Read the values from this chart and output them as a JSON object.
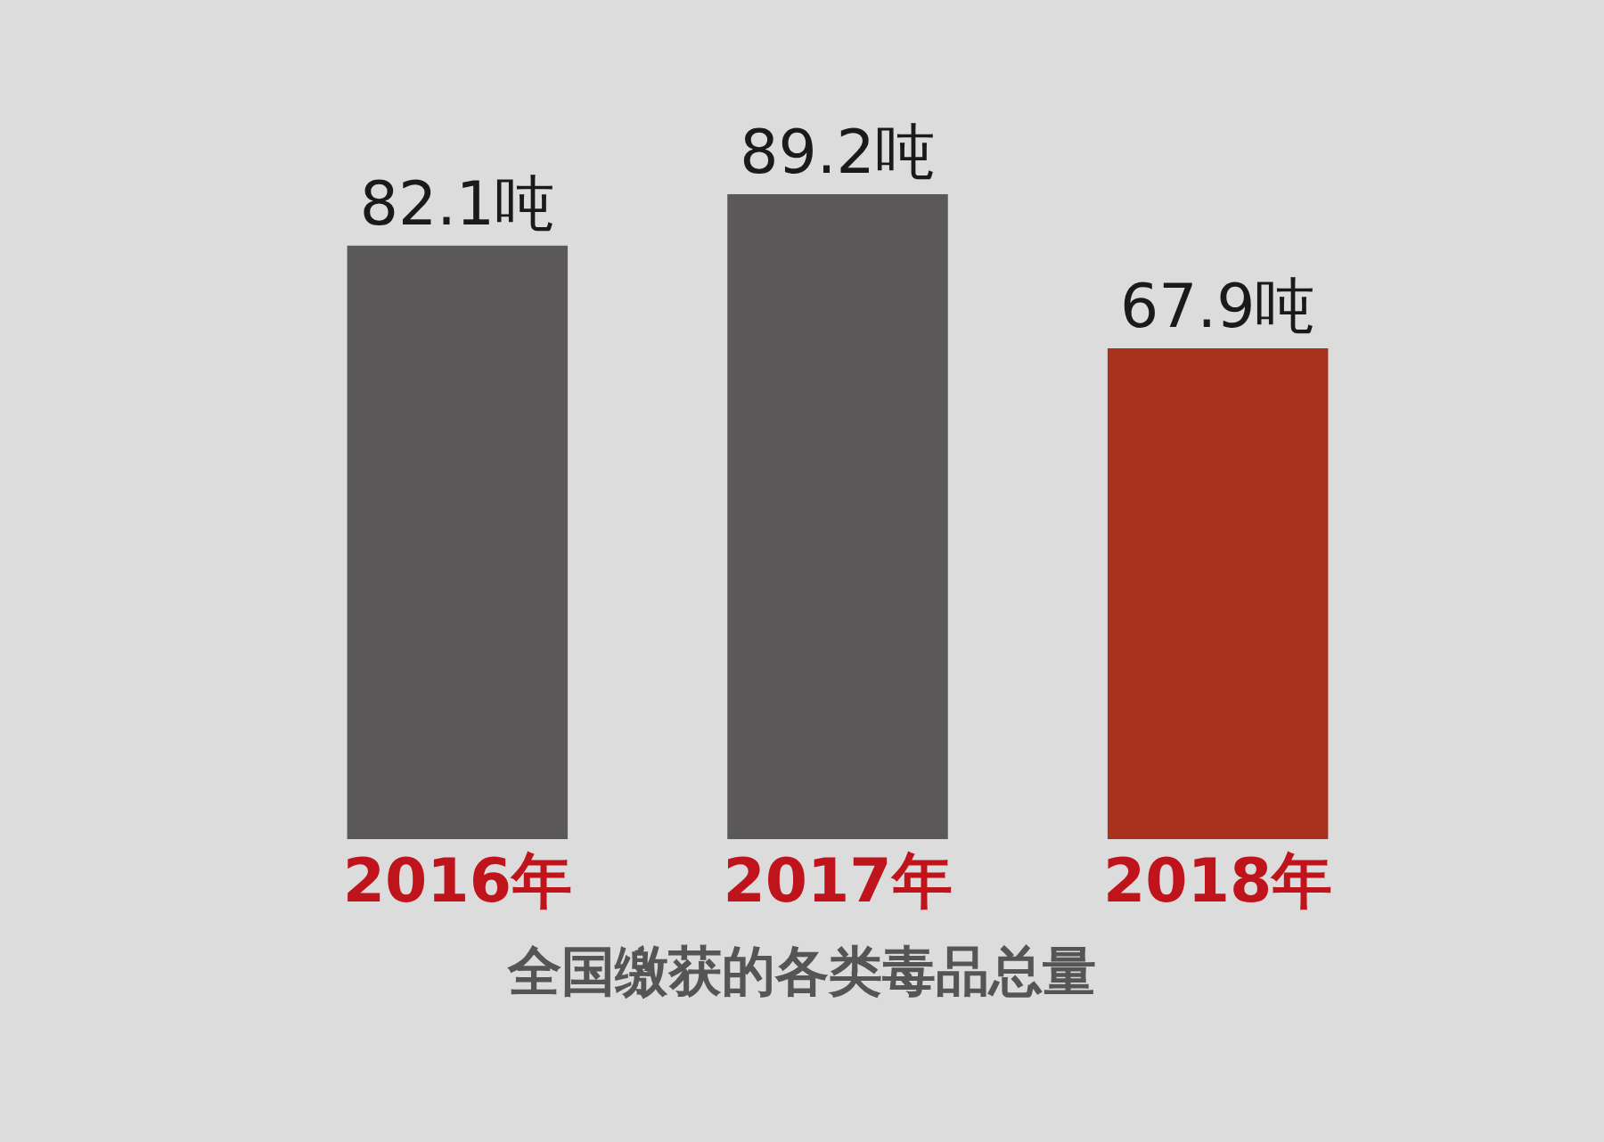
{
  "chart_data": {
    "type": "bar",
    "title": "全国缴获的各类毒品总量",
    "categories": [
      "2016年",
      "2017年",
      "2018年"
    ],
    "values": [
      82.1,
      89.2,
      67.9
    ],
    "colors": [
      "#5a5859",
      "#5a5859",
      "#a8321e"
    ],
    "value_labels": [
      "82.1吨",
      "89.2吨",
      "67.9吨"
    ]
  }
}
